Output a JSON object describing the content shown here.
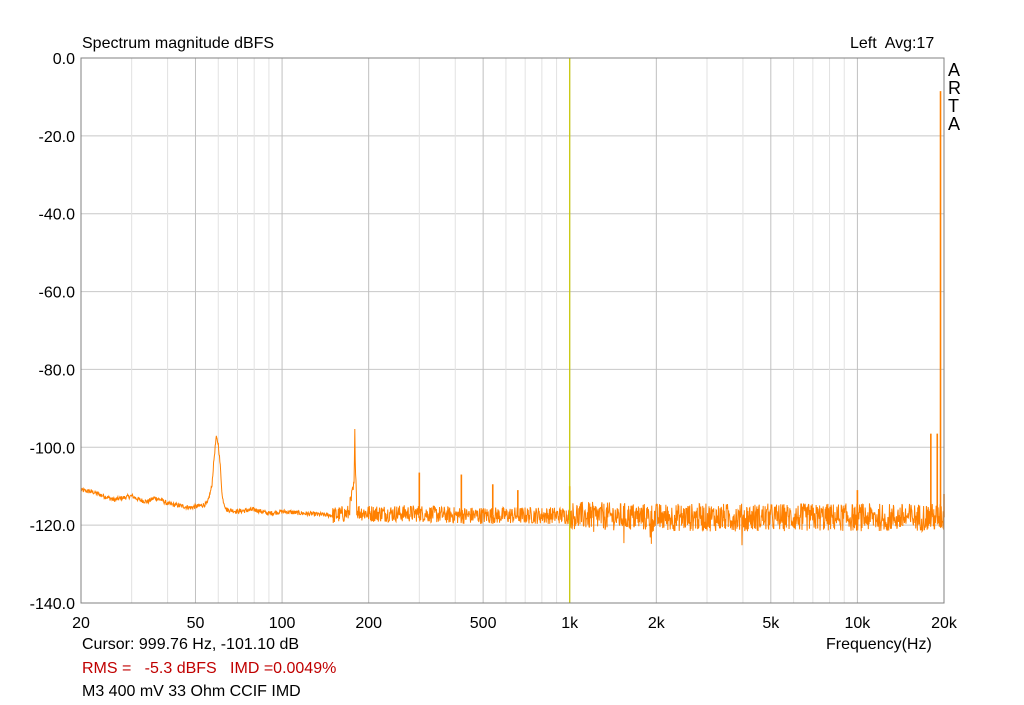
{
  "chart_data": {
    "type": "line",
    "title": "Spectrum magnitude dBFS",
    "channel_info": "Left  Avg:17",
    "brand": [
      "A",
      "R",
      "T",
      "A"
    ],
    "xlabel": "Frequency(Hz)",
    "ylabel": "",
    "x_scale": "log",
    "xlim": [
      20,
      20000
    ],
    "ylim": [
      -140,
      0
    ],
    "grid": true,
    "x_ticks": [
      {
        "value": 20,
        "label": "20"
      },
      {
        "value": 50,
        "label": "50"
      },
      {
        "value": 100,
        "label": "100"
      },
      {
        "value": 200,
        "label": "200"
      },
      {
        "value": 500,
        "label": "500"
      },
      {
        "value": 1000,
        "label": "1k"
      },
      {
        "value": 2000,
        "label": "2k"
      },
      {
        "value": 5000,
        "label": "5k"
      },
      {
        "value": 10000,
        "label": "10k"
      },
      {
        "value": 20000,
        "label": "20k"
      }
    ],
    "y_ticks": [
      {
        "value": 0,
        "label": "0.0"
      },
      {
        "value": -20,
        "label": "-20.0"
      },
      {
        "value": -40,
        "label": "-40.0"
      },
      {
        "value": -60,
        "label": "-60.0"
      },
      {
        "value": -80,
        "label": "-80.0"
      },
      {
        "value": -100,
        "label": "-100.0"
      },
      {
        "value": -120,
        "label": "-120.0"
      },
      {
        "value": -140,
        "label": "-140.0"
      }
    ],
    "cursor_frequency": 999.76,
    "series": [
      {
        "color": "#ff8000",
        "noise_floor_db": -117,
        "points": [
          [
            20,
            -111
          ],
          [
            22,
            -111.5
          ],
          [
            24,
            -112.5
          ],
          [
            26,
            -113.5
          ],
          [
            28,
            -113
          ],
          [
            30,
            -112.5
          ],
          [
            32,
            -113.5
          ],
          [
            34,
            -114
          ],
          [
            36,
            -113
          ],
          [
            38,
            -113.5
          ],
          [
            40,
            -114.5
          ],
          [
            44,
            -115
          ],
          [
            48,
            -115.5
          ],
          [
            52,
            -115
          ],
          [
            55,
            -114.5
          ],
          [
            57,
            -110
          ],
          [
            58,
            -103
          ],
          [
            59,
            -97.5
          ],
          [
            60,
            -99
          ],
          [
            61,
            -105
          ],
          [
            62,
            -113
          ],
          [
            64,
            -116
          ],
          [
            70,
            -116.5
          ],
          [
            80,
            -116
          ],
          [
            90,
            -117
          ],
          [
            100,
            -116.5
          ],
          [
            120,
            -117
          ],
          [
            150,
            -117.5
          ],
          [
            170,
            -117
          ],
          [
            178,
            -110
          ],
          [
            179,
            -97
          ],
          [
            180,
            -104
          ],
          [
            182,
            -116.5
          ],
          [
            200,
            -117
          ],
          [
            300,
            -117
          ],
          [
            400,
            -117.5
          ],
          [
            600,
            -117.5
          ],
          [
            1000,
            -117.5
          ],
          [
            2000,
            -118
          ],
          [
            5000,
            -118
          ],
          [
            10000,
            -118
          ],
          [
            17000,
            -118
          ],
          [
            20000,
            -118
          ]
        ],
        "spikes": [
          [
            300,
            -106.5
          ],
          [
            420,
            -107
          ],
          [
            540,
            -109.5
          ],
          [
            660,
            -111
          ],
          [
            1000,
            -110
          ],
          [
            10000,
            -111
          ],
          [
            18000,
            -96.5
          ],
          [
            18950,
            -96.5
          ],
          [
            19450,
            -8.5
          ],
          [
            20000,
            -112
          ]
        ]
      }
    ]
  },
  "cursor": {
    "readout": "Cursor: 999.76 Hz, -101.10 dB",
    "color": "#c8c800"
  },
  "stats": {
    "text": "RMS =   -5.3 dBFS   IMD =0.0049%",
    "color": "#c00000"
  },
  "caption": "M3 400 mV 33 Ohm CCIF IMD"
}
